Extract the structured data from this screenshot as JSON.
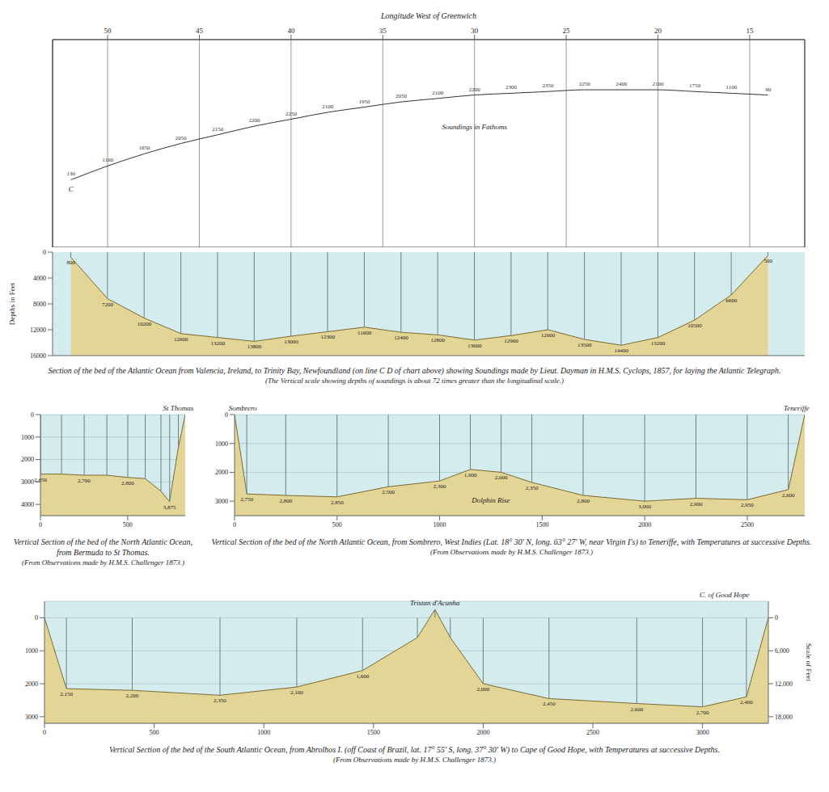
{
  "chart_data": [
    {
      "type": "line",
      "xlabel": "Longitude West of Greenwich",
      "x": [
        52,
        50,
        48,
        46,
        44,
        42,
        40,
        38,
        36,
        34,
        32,
        30,
        28,
        26,
        24,
        22,
        20,
        18,
        16,
        14
      ],
      "values": [
        47.9,
        48.7,
        49.4,
        50.0,
        50.5,
        51.0,
        51.4,
        51.8,
        52.1,
        52.4,
        52.6,
        52.8,
        52.9,
        53.0,
        53.1,
        53.1,
        53.1,
        53.0,
        52.9,
        52.8
      ],
      "soundings": [
        130,
        1100,
        1650,
        2050,
        2150,
        2200,
        2250,
        2100,
        1950,
        2050,
        2100,
        2200,
        2300,
        2350,
        2250,
        2400,
        2100,
        1750,
        1100,
        90
      ],
      "color": "#333333",
      "xlim": [
        53,
        12
      ],
      "xticks": [
        50,
        45,
        40,
        35,
        30,
        25,
        20,
        15
      ],
      "ylim": [
        44,
        56
      ],
      "grid": "x",
      "tick_labels": "x",
      "annotations": [
        {
          "text": "C",
          "x": 52,
          "y": 47.0
        },
        {
          "text": "Soundings in Fathoms",
          "x": 30,
          "y": 50.6
        }
      ]
    },
    {
      "type": "area",
      "title": "Section of the bed of the Atlantic Ocean from Valencia, Ireland, to Trinity Bay, Newfoundland (on line C D of chart above) showing Soundings made by Lieut. Dayman in H.M.S. Cyclops, 1857, for laying the Atlantic Telegraph.",
      "subtitle": "(The Vertical scale showing depths of soundings is about 72 times greater than the longitudinal scale.)",
      "ylabel": "Depths in Feet",
      "x": [
        52,
        50,
        48,
        46,
        44,
        42,
        40,
        38,
        36,
        34,
        32,
        30,
        28,
        26,
        24,
        22,
        20,
        18,
        16,
        14
      ],
      "values": [
        800,
        7200,
        10200,
        12600,
        13200,
        13800,
        13000,
        12300,
        11600,
        12400,
        12800,
        13600,
        12900,
        12000,
        13500,
        14400,
        13200,
        10500,
        6600,
        500
      ],
      "color": "#e3d595",
      "xlim": [
        53,
        12
      ],
      "ylim": [
        0,
        16000
      ],
      "yticks": [
        0,
        4000,
        8000,
        12000,
        16000
      ],
      "tick_labels": "y",
      "data_labels": true
    },
    {
      "type": "area",
      "title": "Vertical Section of the bed of the North Atlantic Ocean, from Bermuda to St Thomas.",
      "subtitle": "(From Observations made by H.M.S. Challenger 1873.)",
      "x": [
        0,
        120,
        250,
        380,
        500,
        600,
        690,
        740,
        790,
        830
      ],
      "values": [
        2650,
        2650,
        2700,
        2700,
        2800,
        2850,
        3400,
        3875,
        1500,
        0
      ],
      "value_labels": [
        "2,650",
        null,
        "2,700",
        null,
        "2,800",
        null,
        null,
        "3,875",
        null,
        null
      ],
      "data_labels": true,
      "color": "#e3d595",
      "xlim": [
        0,
        830
      ],
      "xticks": [
        0,
        500
      ],
      "ylim": [
        0,
        4500
      ],
      "yticks": [
        0,
        1000,
        2000,
        3000,
        4000
      ],
      "grid": "y",
      "annotations": [
        {
          "text": "St Thomas",
          "x": 790,
          "y": 0
        }
      ]
    },
    {
      "type": "area",
      "title": "Vertical Section of the bed of the North Atlantic Ocean, from Sombrero, West Indies (Lat. 18° 30' N, long. 63° 27' W, near Virgin I's) to Teneriffe, with Temperatures at successive Depths.",
      "subtitle": "(From Observations made by H.M.S. Challenger 1873.)",
      "x": [
        0,
        60,
        250,
        500,
        750,
        1000,
        1150,
        1300,
        1450,
        1700,
        2000,
        2250,
        2500,
        2700,
        2780
      ],
      "values": [
        0,
        2750,
        2800,
        2850,
        2500,
        2300,
        1900,
        2000,
        2350,
        2800,
        3000,
        2900,
        2950,
        2600,
        0
      ],
      "value_labels": [
        null,
        "2,750",
        "2,800",
        "2,850",
        "2,500",
        "2,300",
        "1,900",
        "2,000",
        "2,350",
        "2,800",
        "3,000",
        "2,900",
        "2,950",
        "2,600",
        null
      ],
      "data_labels": true,
      "color": "#e3d595",
      "xlim": [
        0,
        2780
      ],
      "xticks": [
        0,
        500,
        1000,
        1500,
        2000,
        2500
      ],
      "ylim": [
        0,
        3500
      ],
      "yticks": [
        0,
        1000,
        2000,
        3000
      ],
      "grid": "y",
      "annotations": [
        {
          "text": "Sombrero",
          "x": 40,
          "y": 0
        },
        {
          "text": "Teneriffe",
          "x": 2740,
          "y": 0
        },
        {
          "text": "Dolphin Rise",
          "x": 1250,
          "y": 3200
        }
      ]
    },
    {
      "type": "area",
      "title": "Vertical Section of the bed of the South Atlantic Ocean, from Abrolhos I. (off Coast of Brazil, lat. 17° 55' S, long. 37° 30' W) to Cape of Good Hope, with Temperatures at successive Depths.",
      "subtitle": "(From Observations made by H.M.S. Challenger 1873.)",
      "x": [
        0,
        100,
        400,
        800,
        1150,
        1450,
        1700,
        1780,
        1850,
        2000,
        2300,
        2700,
        3000,
        3200,
        3300
      ],
      "values": [
        0,
        2150,
        2200,
        2350,
        2100,
        1600,
        600,
        -250,
        600,
        2000,
        2450,
        2600,
        2700,
        2400,
        0
      ],
      "value_labels": [
        null,
        "2,150",
        "2,200",
        "2,350",
        "2,100",
        "1,600",
        null,
        null,
        null,
        "2,000",
        "2,450",
        "2,600",
        "2,700",
        "2,400",
        null
      ],
      "data_labels": true,
      "color": "#e3d595",
      "xlim": [
        0,
        3300
      ],
      "xticks": [
        0,
        500,
        1000,
        1500,
        2000,
        2500,
        3000
      ],
      "ylim": [
        -500,
        3200
      ],
      "yticks": [
        0,
        1000,
        2000,
        3000
      ],
      "grid": "y",
      "y2label": "Scale of Feet",
      "y2lim": [
        -3000,
        19200
      ],
      "y2ticks": [
        0,
        {
          "value": 6000,
          "label": "6,000"
        },
        {
          "value": 12000,
          "label": "12,000"
        },
        {
          "value": 18000,
          "label": "18,000"
        }
      ],
      "annotations": [
        {
          "text": "Tristan d'Acunha",
          "x": 1780,
          "y": -250
        },
        {
          "text": "C. of Good Hope",
          "x": 3100,
          "y": -500
        }
      ]
    }
  ]
}
